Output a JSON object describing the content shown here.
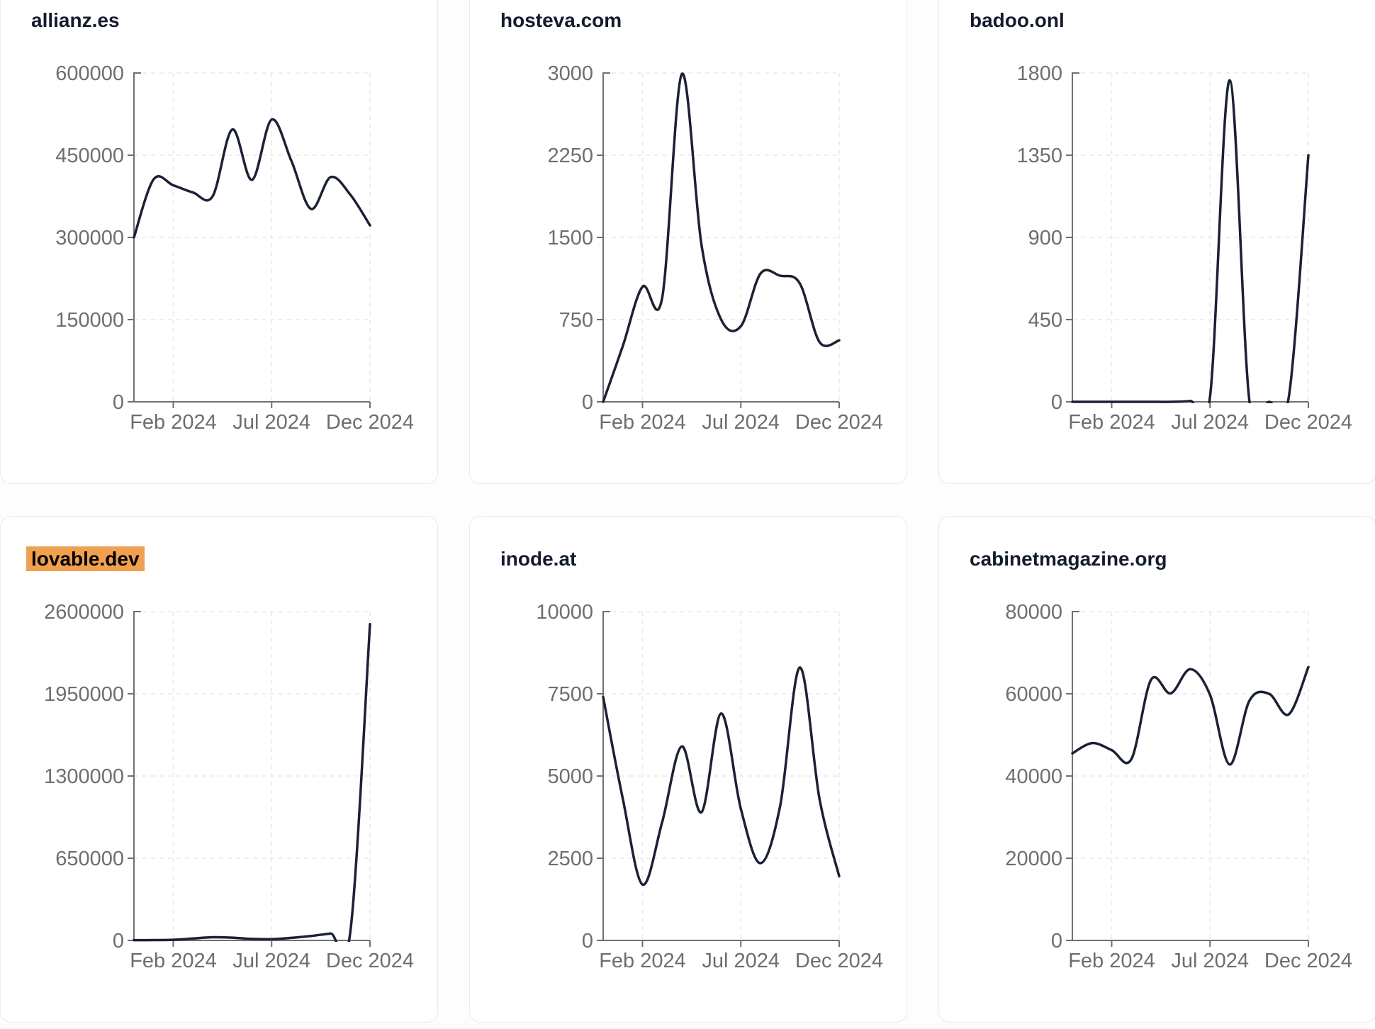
{
  "page": {
    "background": "#fdfdfe"
  },
  "colors": {
    "line": "#1b2135",
    "title": "#141b2d",
    "tick_label": "#6e6e6e",
    "axis": "#6f7070",
    "grid": "#e9e9e9",
    "highlight_bg": "#f0a04f",
    "highlight_text": "#000000",
    "card_bg": "#ffffff",
    "card_border": "#e9ebee"
  },
  "chart_data": [
    {
      "type": "line",
      "title": "allianz.es",
      "title_highlighted": false,
      "x": [
        "Dec 2023",
        "Jan 2024",
        "Feb 2024",
        "Mar 2024",
        "Apr 2024",
        "May 2024",
        "Jun 2024",
        "Jul 2024",
        "Aug 2024",
        "Sep 2024",
        "Oct 2024",
        "Nov 2024",
        "Dec 2024"
      ],
      "values": [
        300000,
        406000,
        395000,
        382000,
        375000,
        497000,
        405000,
        515000,
        440000,
        352000,
        410000,
        378000,
        322000
      ],
      "ylim": [
        0,
        600000
      ],
      "yticks": [
        0,
        150000,
        300000,
        450000,
        600000
      ],
      "xticks": [
        {
          "label": "Feb 2024",
          "index": 2
        },
        {
          "label": "Jul 2024",
          "index": 7
        },
        {
          "label": "Dec 2024",
          "index": 12
        }
      ],
      "grid": "dashed",
      "legend": false
    },
    {
      "type": "line",
      "title": "hosteva.com",
      "title_highlighted": false,
      "x": [
        "Dec 2023",
        "Jan 2024",
        "Feb 2024",
        "Mar 2024",
        "Apr 2024",
        "May 2024",
        "Jun 2024",
        "Jul 2024",
        "Aug 2024",
        "Sep 2024",
        "Oct 2024",
        "Nov 2024",
        "Dec 2024"
      ],
      "values": [
        0,
        510,
        1050,
        950,
        2990,
        1430,
        750,
        690,
        1170,
        1150,
        1080,
        545,
        560
      ],
      "ylim": [
        0,
        3000
      ],
      "yticks": [
        0,
        750,
        1500,
        2250,
        3000
      ],
      "xticks": [
        {
          "label": "Feb 2024",
          "index": 2
        },
        {
          "label": "Jul 2024",
          "index": 7
        },
        {
          "label": "Dec 2024",
          "index": 12
        }
      ],
      "grid": "dashed",
      "legend": false
    },
    {
      "type": "line",
      "title": "badoo.onl",
      "title_highlighted": false,
      "x": [
        "Dec 2023",
        "Jan 2024",
        "Feb 2024",
        "Mar 2024",
        "Apr 2024",
        "May 2024",
        "Jun 2024",
        "Jul 2024",
        "Aug 2024",
        "Sep 2024",
        "Oct 2024",
        "Nov 2024",
        "Dec 2024"
      ],
      "values": [
        0,
        0,
        0,
        0,
        0,
        0,
        5,
        30,
        1760,
        5,
        0,
        25,
        1350
      ],
      "ylim": [
        0,
        1800
      ],
      "yticks": [
        0,
        450,
        900,
        1350,
        1800
      ],
      "xticks": [
        {
          "label": "Feb 2024",
          "index": 2
        },
        {
          "label": "Jul 2024",
          "index": 7
        },
        {
          "label": "Dec 2024",
          "index": 12
        }
      ],
      "grid": "dashed",
      "legend": false
    },
    {
      "type": "line",
      "title": "lovable.dev",
      "title_highlighted": true,
      "x": [
        "Dec 2023",
        "Jan 2024",
        "Feb 2024",
        "Mar 2024",
        "Apr 2024",
        "May 2024",
        "Jun 2024",
        "Jul 2024",
        "Aug 2024",
        "Sep 2024",
        "Oct 2024",
        "Nov 2024",
        "Dec 2024"
      ],
      "values": [
        2000,
        3000,
        5000,
        15000,
        25000,
        22000,
        12000,
        10000,
        20000,
        35000,
        55000,
        68000,
        2500000
      ],
      "ylim": [
        0,
        2600000
      ],
      "yticks": [
        0,
        650000,
        1300000,
        1950000,
        2600000
      ],
      "xticks": [
        {
          "label": "Feb 2024",
          "index": 2
        },
        {
          "label": "Jul 2024",
          "index": 7
        },
        {
          "label": "Dec 2024",
          "index": 12
        }
      ],
      "grid": "dashed",
      "legend": false
    },
    {
      "type": "line",
      "title": "inode.at",
      "title_highlighted": false,
      "x": [
        "Dec 2023",
        "Jan 2024",
        "Feb 2024",
        "Mar 2024",
        "Apr 2024",
        "May 2024",
        "Jun 2024",
        "Jul 2024",
        "Aug 2024",
        "Sep 2024",
        "Oct 2024",
        "Nov 2024",
        "Dec 2024"
      ],
      "values": [
        7400,
        4300,
        1700,
        3600,
        5900,
        3900,
        6900,
        4000,
        2350,
        4100,
        8300,
        4300,
        1950
      ],
      "ylim": [
        0,
        10000
      ],
      "yticks": [
        0,
        2500,
        5000,
        7500,
        10000
      ],
      "xticks": [
        {
          "label": "Feb 2024",
          "index": 2
        },
        {
          "label": "Jul 2024",
          "index": 7
        },
        {
          "label": "Dec 2024",
          "index": 12
        }
      ],
      "grid": "dashed",
      "legend": false
    },
    {
      "type": "line",
      "title": "cabinetmagazine.org",
      "title_highlighted": false,
      "x": [
        "Dec 2023",
        "Jan 2024",
        "Feb 2024",
        "Mar 2024",
        "Apr 2024",
        "May 2024",
        "Jun 2024",
        "Jul 2024",
        "Aug 2024",
        "Sep 2024",
        "Oct 2024",
        "Nov 2024",
        "Dec 2024"
      ],
      "values": [
        45500,
        48000,
        46300,
        44100,
        63400,
        60100,
        66000,
        59700,
        42800,
        58300,
        60000,
        55000,
        66500
      ],
      "ylim": [
        0,
        80000
      ],
      "yticks": [
        0,
        20000,
        40000,
        60000,
        80000
      ],
      "xticks": [
        {
          "label": "Feb 2024",
          "index": 2
        },
        {
          "label": "Jul 2024",
          "index": 7
        },
        {
          "label": "Dec 2024",
          "index": 12
        }
      ],
      "grid": "dashed",
      "legend": false
    }
  ]
}
